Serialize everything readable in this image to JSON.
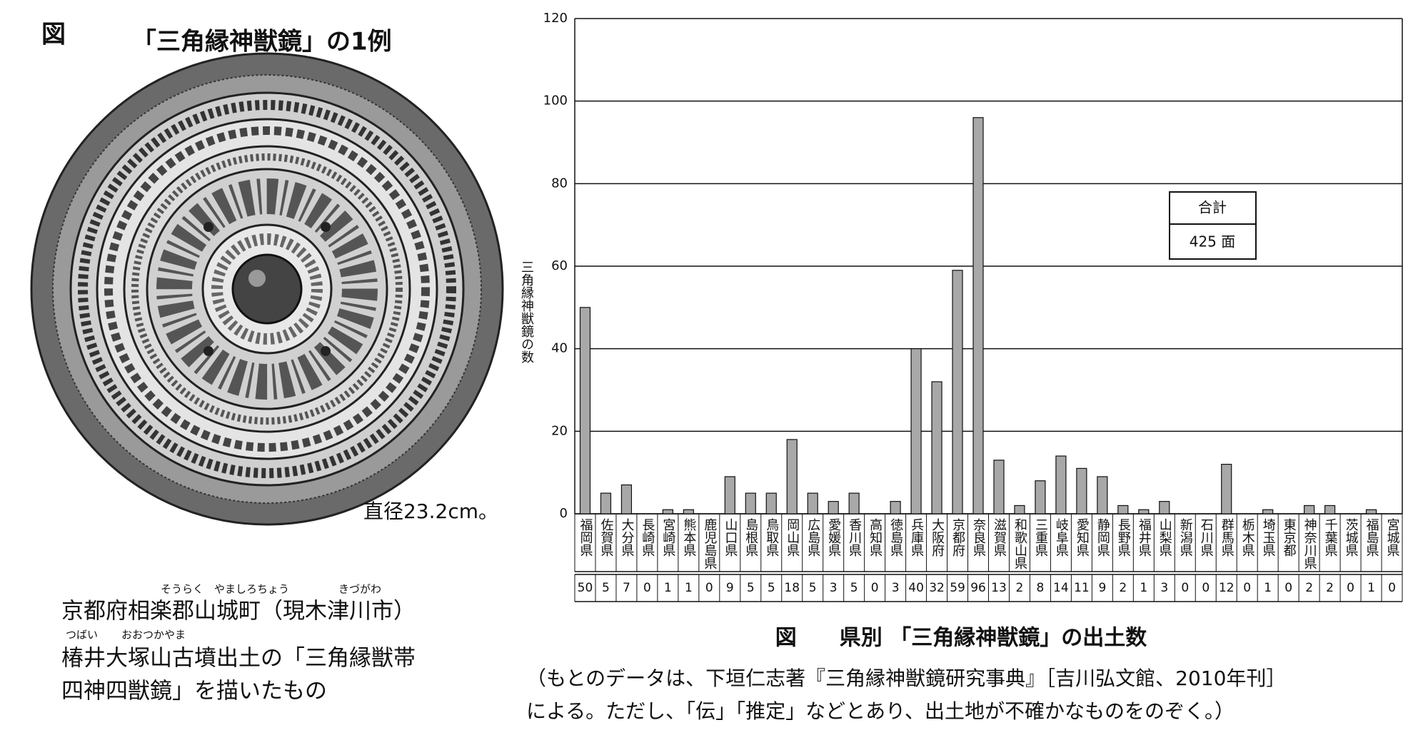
{
  "left_figure": {
    "label": "図",
    "title": "「三角縁神獣鏡」の1例",
    "diameter": "直径23.2cm。",
    "caption": {
      "ruby_line_1": [
        "そうらく",
        "やましろちょう",
        "きづがわ"
      ],
      "line_1": "京都府相楽郡山城町（現木津川市）",
      "ruby_line_2": [
        "つばい",
        "おおつかやま"
      ],
      "line_2": "椿井大塚山古墳出土の「三角縁獣帯",
      "line_3": "四神四獣鏡」を描いたもの"
    }
  },
  "chart_data": {
    "type": "bar",
    "title": "図　　県別 「三角縁神獣鏡」の出土数",
    "y_label": "三角縁神獣鏡の数",
    "categories": [
      "福岡県",
      "佐賀県",
      "大分県",
      "長崎県",
      "宮崎県",
      "熊本県",
      "鹿児島県",
      "山口県",
      "島根県",
      "鳥取県",
      "岡山県",
      "広島県",
      "愛媛県",
      "香川県",
      "高知県",
      "徳島県",
      "兵庫県",
      "大阪府",
      "京都府",
      "奈良県",
      "滋賀県",
      "和歌山県",
      "三重県",
      "岐阜県",
      "愛知県",
      "静岡県",
      "長野県",
      "福井県",
      "山梨県",
      "新潟県",
      "石川県",
      "群馬県",
      "栃木県",
      "埼玉県",
      "東京都",
      "神奈川県",
      "千葉県",
      "茨城県",
      "福島県",
      "宮城県"
    ],
    "values": [
      50,
      5,
      7,
      0,
      1,
      1,
      0,
      9,
      5,
      5,
      18,
      5,
      3,
      5,
      0,
      3,
      40,
      32,
      59,
      96,
      13,
      2,
      8,
      14,
      11,
      9,
      2,
      1,
      3,
      0,
      0,
      12,
      0,
      1,
      0,
      2,
      2,
      0,
      1,
      0
    ],
    "color": "#a8a8a8",
    "ylim": [
      0,
      120
    ],
    "yticks": [
      0,
      20,
      40,
      60,
      80,
      100,
      120
    ],
    "grid": true,
    "total_box": {
      "label": "合計",
      "value": "425 面"
    },
    "notes": [
      "（もとのデータは、下垣仁志著『三角縁神獣鏡研究事典』［吉川弘文館、2010年刊］",
      "による。ただし、「伝」「推定」などとあり、出土地が不確かなものをのぞく。）"
    ]
  }
}
